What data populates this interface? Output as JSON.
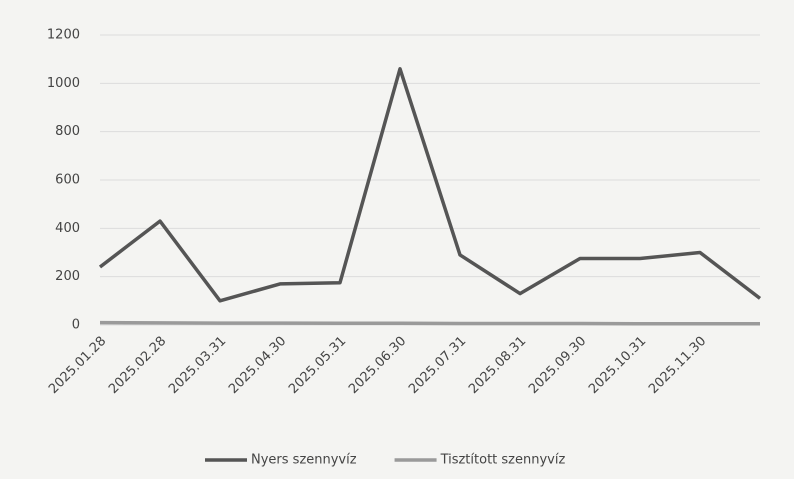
{
  "chart_data": {
    "type": "line",
    "categories": [
      "2025.01.28",
      "2025.02.28",
      "2025.03.31",
      "2025.04.30",
      "2025.05.31",
      "2025.06.30",
      "2025.07.31",
      "2025.08.31",
      "2025.09.30",
      "2025.10.31",
      "2025.11.30",
      null
    ],
    "series": [
      {
        "name": "Nyers szennyvíz",
        "color": "#555555",
        "values": [
          240,
          430,
          100,
          170,
          175,
          1060,
          290,
          130,
          275,
          275,
          300,
          110
        ]
      },
      {
        "name": "Tisztított szennyvíz",
        "color": "#9a9a9a",
        "values": [
          10,
          9,
          8,
          8,
          7,
          7,
          6,
          6,
          6,
          5,
          5,
          5
        ]
      }
    ],
    "ylim": [
      0,
      1200
    ],
    "yticks": [
      0,
      200,
      400,
      600,
      800,
      1000,
      1200
    ],
    "grid": true,
    "legend": "bottom"
  }
}
